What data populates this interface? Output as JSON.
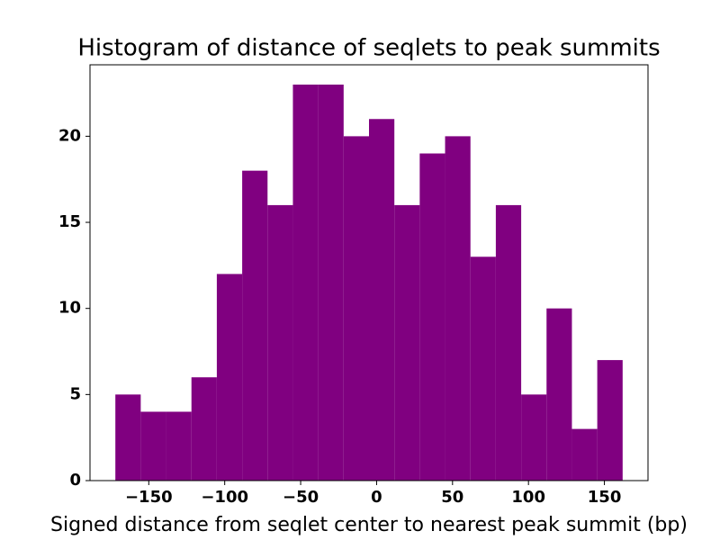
{
  "chart_data": {
    "type": "histogram",
    "title": "Histogram of distance of seqlets to peak summits",
    "xlabel": "Signed distance from seqlet center to nearest peak summit (bp)",
    "bins": [
      -172,
      -155.3,
      -138.6,
      -121.9,
      -105.2,
      -88.5,
      -71.8,
      -55.1,
      -38.4,
      -21.7,
      -5,
      11.7,
      28.4,
      45.1,
      61.8,
      78.5,
      95.2,
      111.9,
      128.6,
      145.3,
      162
    ],
    "values": [
      5,
      4,
      4,
      6,
      12,
      18,
      16,
      23,
      23,
      20,
      21,
      16,
      19,
      20,
      13,
      16,
      5,
      10,
      3,
      7
    ],
    "color": "#800080",
    "xlim": [
      -188.7,
      178.7
    ],
    "xticks": [
      {
        "value": -150,
        "label": "−150"
      },
      {
        "value": -100,
        "label": "−100"
      },
      {
        "value": -50,
        "label": "−50"
      },
      0,
      50,
      100,
      150
    ],
    "ylim": [
      0,
      24.15
    ],
    "yticks": [
      0,
      5,
      10,
      15,
      20
    ]
  }
}
